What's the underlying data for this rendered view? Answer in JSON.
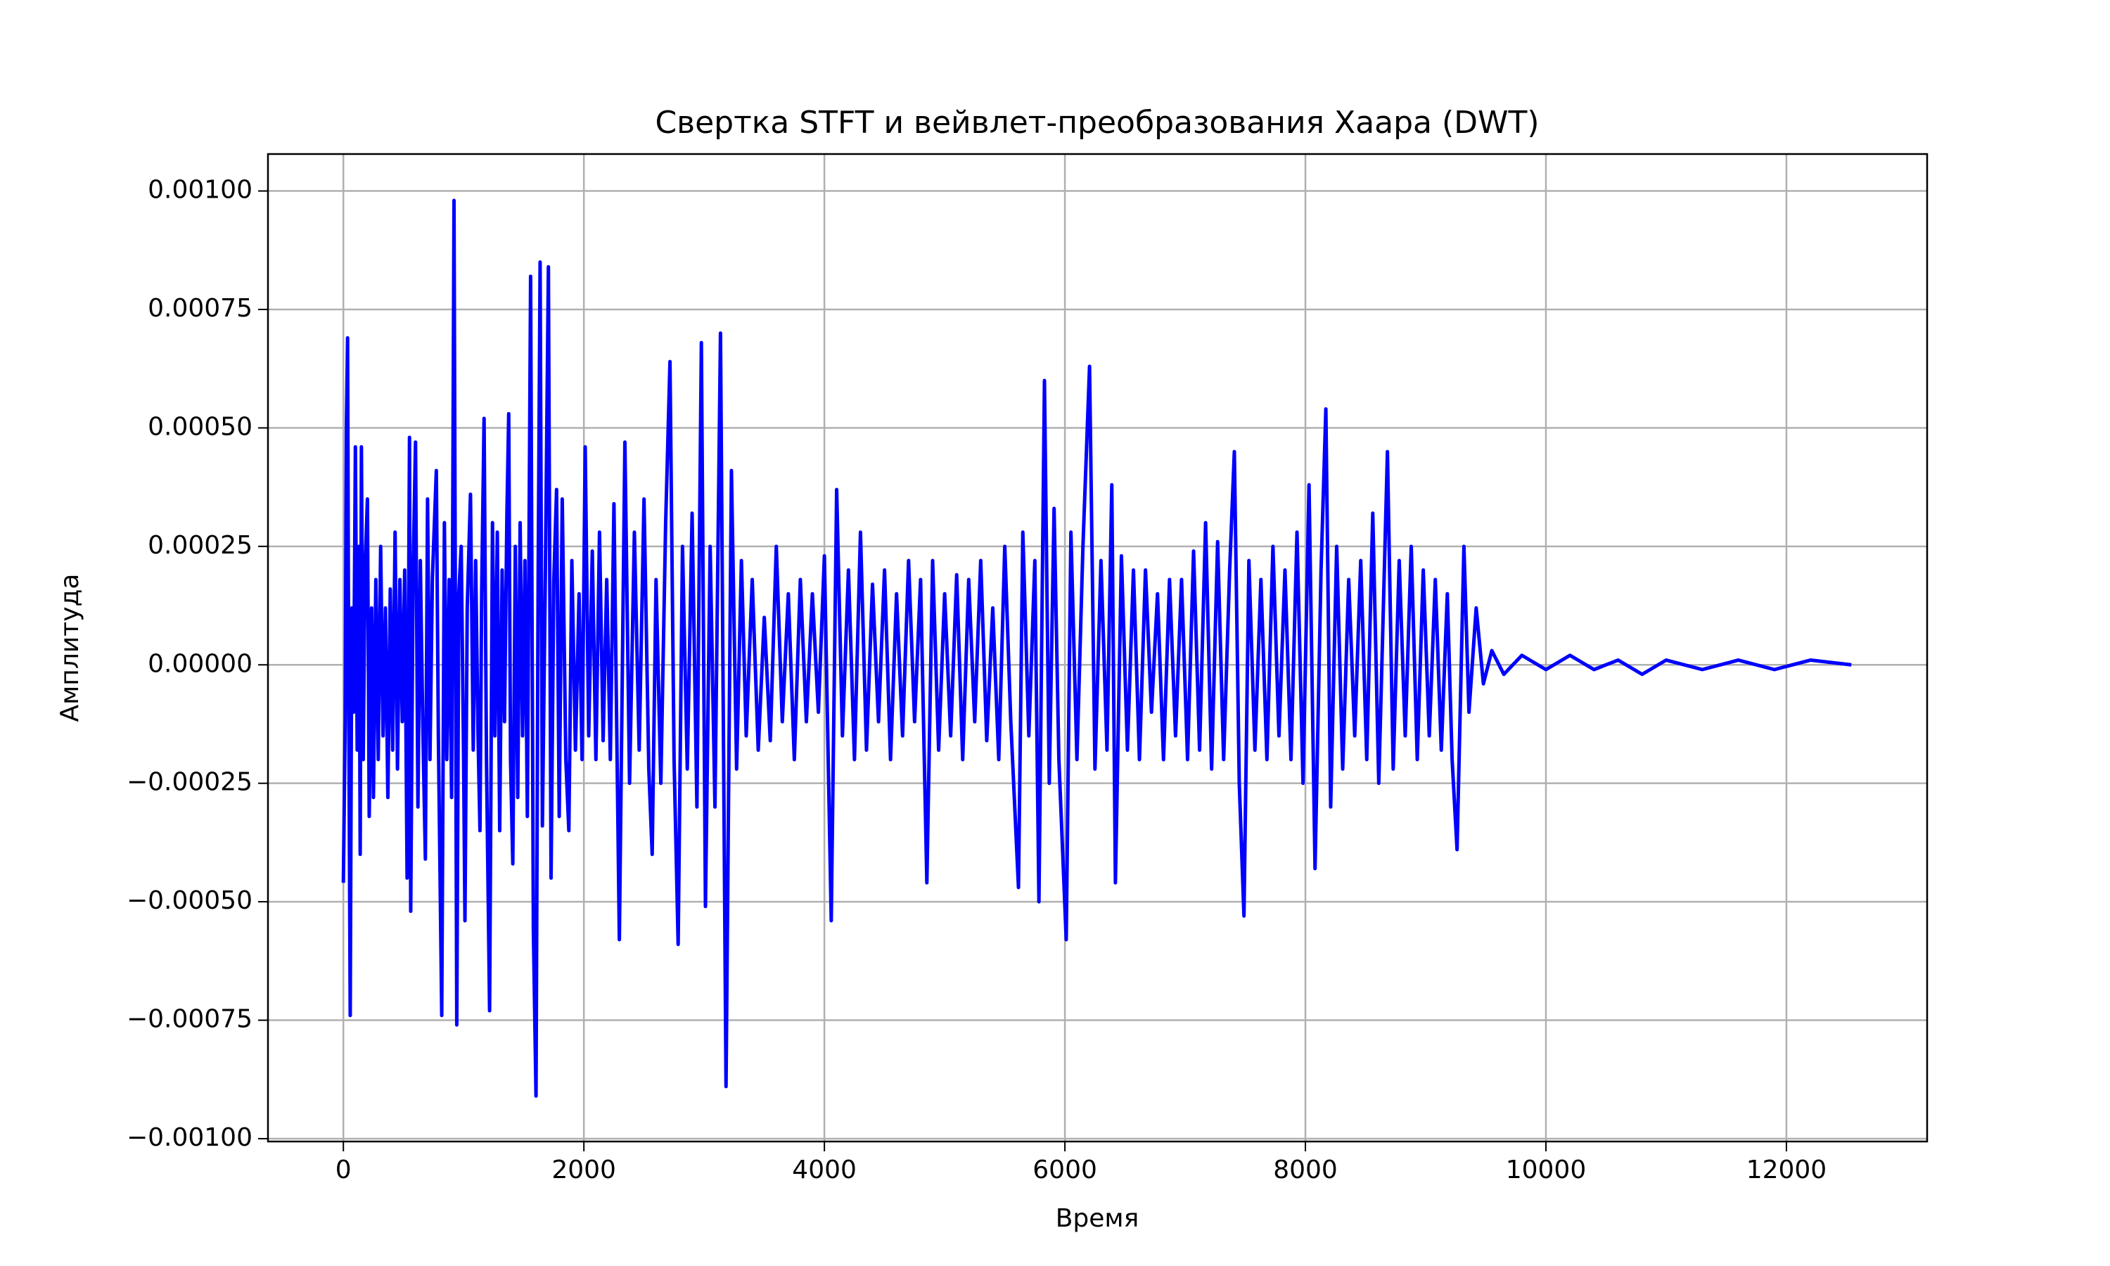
{
  "chart_data": {
    "type": "line",
    "title": "Свертка STFT и вейвлет-преобразования Хаара (DWT)",
    "x_label": "Время",
    "y_label": "Амплитуда",
    "grid": true,
    "xlim": [
      -627,
      13170
    ],
    "ylim": [
      -0.001006,
      0.001078
    ],
    "xticks": [
      0,
      2000,
      4000,
      6000,
      8000,
      10000,
      12000
    ],
    "yticks": [
      {
        "value": -0.001,
        "label": "−0.00100"
      },
      {
        "value": -0.00075,
        "label": "−0.00075"
      },
      {
        "value": -0.0005,
        "label": "−0.00050"
      },
      {
        "value": -0.00025,
        "label": "−0.00025"
      },
      {
        "value": 0,
        "label": "0.00000"
      },
      {
        "value": 0.00025,
        "label": "0.00025"
      },
      {
        "value": 0.0005,
        "label": "0.00050"
      },
      {
        "value": 0.00075,
        "label": "0.00075"
      },
      {
        "value": 0.001,
        "label": "0.00100"
      }
    ],
    "x": [
      0,
      15,
      25,
      35,
      45,
      57,
      70,
      85,
      100,
      115,
      130,
      140,
      150,
      165,
      180,
      200,
      215,
      235,
      250,
      270,
      290,
      310,
      330,
      350,
      370,
      390,
      410,
      430,
      450,
      470,
      490,
      510,
      530,
      550,
      560,
      580,
      600,
      620,
      640,
      660,
      682,
      700,
      720,
      740,
      773,
      790,
      818,
      840,
      860,
      880,
      900,
      920,
      943,
      960,
      980,
      1000,
      1011,
      1030,
      1057,
      1080,
      1100,
      1120,
      1136,
      1150,
      1170,
      1190,
      1216,
      1240,
      1260,
      1280,
      1300,
      1320,
      1340,
      1360,
      1375,
      1390,
      1409,
      1430,
      1450,
      1470,
      1490,
      1510,
      1530,
      1557,
      1580,
      1602,
      1620,
      1636,
      1655,
      1680,
      1705,
      1727,
      1750,
      1773,
      1795,
      1820,
      1850,
      1875,
      1900,
      1930,
      1960,
      1985,
      2011,
      2040,
      2070,
      2100,
      2130,
      2160,
      2190,
      2220,
      2250,
      2295,
      2341,
      2380,
      2420,
      2460,
      2500,
      2540,
      2568,
      2600,
      2640,
      2680,
      2716,
      2750,
      2784,
      2820,
      2860,
      2900,
      2940,
      2977,
      3011,
      3050,
      3090,
      3136,
      3182,
      3227,
      3270,
      3310,
      3350,
      3400,
      3450,
      3500,
      3550,
      3600,
      3650,
      3700,
      3750,
      3800,
      3850,
      3900,
      3950,
      4000,
      4057,
      4102,
      4150,
      4200,
      4250,
      4300,
      4350,
      4400,
      4450,
      4500,
      4550,
      4600,
      4650,
      4700,
      4750,
      4800,
      4852,
      4900,
      4950,
      5000,
      5050,
      5100,
      5150,
      5200,
      5250,
      5300,
      5350,
      5400,
      5450,
      5500,
      5550,
      5614,
      5650,
      5700,
      5750,
      5784,
      5830,
      5870,
      5910,
      5950,
      6011,
      6050,
      6100,
      6150,
      6205,
      6250,
      6300,
      6350,
      6390,
      6420,
      6470,
      6520,
      6570,
      6620,
      6670,
      6720,
      6770,
      6820,
      6870,
      6920,
      6970,
      7020,
      7070,
      7120,
      7170,
      7220,
      7270,
      7320,
      7370,
      7409,
      7450,
      7489,
      7530,
      7580,
      7630,
      7680,
      7730,
      7780,
      7830,
      7880,
      7930,
      7980,
      8030,
      8080,
      8130,
      8170,
      8210,
      8260,
      8310,
      8360,
      8410,
      8460,
      8510,
      8560,
      8610,
      8682,
      8730,
      8780,
      8830,
      8880,
      8930,
      8980,
      9030,
      9080,
      9130,
      9180,
      9220,
      9261,
      9318,
      9360,
      9420,
      9480,
      9550,
      9650,
      9800,
      10000,
      10200,
      10400,
      10600,
      10800,
      11000,
      11300,
      11600,
      11900,
      12200,
      12540
    ],
    "series": [
      {
        "color": "#0000ff",
        "values": [
          -0.00046,
          -0.00012,
          0.0005,
          0.00069,
          -0.0001,
          -0.00074,
          0.00012,
          -0.0001,
          0.00046,
          -0.00018,
          0.00025,
          -0.0004,
          0.00046,
          -0.0002,
          0.0002,
          0.00035,
          -0.00032,
          0.00012,
          -0.00028,
          0.00018,
          -0.0002,
          0.00025,
          -0.00015,
          0.00012,
          -0.00028,
          0.00016,
          -0.00018,
          0.00028,
          -0.00022,
          0.00018,
          -0.00012,
          0.0002,
          -0.00045,
          0.00048,
          -0.00052,
          0.0002,
          0.00047,
          -0.0003,
          0.00022,
          -0.00012,
          -0.00041,
          0.00035,
          -0.0002,
          0.00018,
          0.00041,
          -0.00015,
          -0.00074,
          0.0003,
          -0.0002,
          0.00018,
          -0.00028,
          0.00098,
          -0.00076,
          0.00015,
          0.00025,
          -0.0002,
          -0.00054,
          0.00012,
          0.00036,
          -0.00018,
          0.00022,
          -0.00015,
          -0.00035,
          0.00015,
          0.00052,
          -0.0002,
          -0.00073,
          0.0003,
          -0.00015,
          0.00028,
          -0.00035,
          0.0002,
          -0.00012,
          0.00032,
          0.00053,
          -0.0002,
          -0.00042,
          0.00025,
          -0.00028,
          0.0003,
          -0.00015,
          0.00022,
          -0.00032,
          0.00082,
          -0.00056,
          -0.00091,
          0.0002,
          0.00085,
          -0.00034,
          0.0002,
          0.00084,
          -0.00045,
          0.00018,
          0.00037,
          -0.00032,
          0.00035,
          -0.0002,
          -0.00035,
          0.00022,
          -0.00018,
          0.00015,
          -0.0002,
          0.00046,
          -0.00015,
          0.00024,
          -0.0002,
          0.00028,
          -0.00016,
          0.00018,
          -0.0002,
          0.00034,
          -0.00058,
          0.00047,
          -0.00025,
          0.00028,
          -0.00018,
          0.00035,
          -0.00022,
          -0.0004,
          0.00018,
          -0.00025,
          0.0003,
          0.00064,
          -0.0002,
          -0.00059,
          0.00025,
          -0.00022,
          0.00032,
          -0.0003,
          0.00068,
          -0.00051,
          0.00025,
          -0.0003,
          0.0007,
          -0.00089,
          0.00041,
          -0.00022,
          0.00022,
          -0.00015,
          0.00018,
          -0.00018,
          0.0001,
          -0.00016,
          0.00025,
          -0.00012,
          0.00015,
          -0.0002,
          0.00018,
          -0.00012,
          0.00015,
          -0.0001,
          0.00023,
          -0.00054,
          0.00037,
          -0.00015,
          0.0002,
          -0.0002,
          0.00028,
          -0.00018,
          0.00017,
          -0.00012,
          0.0002,
          -0.0002,
          0.00015,
          -0.00015,
          0.00022,
          -0.00012,
          0.00018,
          -0.00046,
          0.00022,
          -0.00018,
          0.00015,
          -0.00015,
          0.00019,
          -0.0002,
          0.00018,
          -0.00012,
          0.00022,
          -0.00016,
          0.00012,
          -0.0002,
          0.00025,
          -0.00012,
          -0.00047,
          0.00028,
          -0.00015,
          0.00022,
          -0.0005,
          0.0006,
          -0.00025,
          0.00033,
          -0.0002,
          -0.00058,
          0.00028,
          -0.0002,
          0.00025,
          0.00063,
          -0.00022,
          0.00022,
          -0.00018,
          0.00038,
          -0.00046,
          0.00023,
          -0.00018,
          0.0002,
          -0.0002,
          0.0002,
          -0.0001,
          0.00015,
          -0.0002,
          0.00018,
          -0.00015,
          0.00018,
          -0.0002,
          0.00024,
          -0.00018,
          0.0003,
          -0.00022,
          0.00026,
          -0.0002,
          0.0002,
          0.00045,
          -0.00025,
          -0.00053,
          0.00022,
          -0.00018,
          0.00018,
          -0.0002,
          0.00025,
          -0.00015,
          0.0002,
          -0.0002,
          0.00028,
          -0.00025,
          0.00038,
          -0.00043,
          0.0002,
          0.00054,
          -0.0003,
          0.00025,
          -0.00022,
          0.00018,
          -0.00015,
          0.00022,
          -0.0002,
          0.00032,
          -0.00025,
          0.00045,
          -0.00022,
          0.00022,
          -0.00015,
          0.00025,
          -0.0002,
          0.0002,
          -0.00015,
          0.00018,
          -0.00018,
          0.00015,
          -0.0002,
          -0.00039,
          0.00025,
          -0.0001,
          0.00012,
          -4e-05,
          3e-05,
          -2e-05,
          2e-05,
          -1e-05,
          2e-05,
          -1e-05,
          1e-05,
          -2e-05,
          1e-05,
          -1e-05,
          1e-05,
          -1e-05,
          1e-05,
          0
        ]
      }
    ]
  }
}
